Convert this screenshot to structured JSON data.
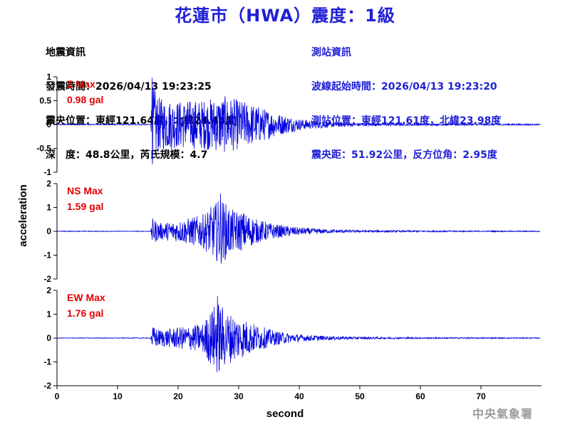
{
  "title": "花蓮市（HWA）震度：1級",
  "earthquake_info": {
    "heading": "地震資訊",
    "origin_time": "發震時間：2026/04/13 19:23:25",
    "epicenter": "震央位置：東經121.64度，北緯24.44度",
    "depth_magnitude": "深　度：48.8公里，芮氏規模：4.7"
  },
  "station_info": {
    "heading": "測站資訊",
    "wave_start": "波線起始時間：2026/04/13 19:23:20",
    "location": "測站位置：東經121.61度，北緯23.98度",
    "distance": "震央距：51.92公里，反方位角：2.95度"
  },
  "agency": "中央氣象署",
  "colors": {
    "title": "#1f1fd6",
    "trace": "#0000dd",
    "max_label": "#e00000",
    "station_info": "#1f1fd6",
    "agency": "#9a9a9a"
  },
  "chart_data": {
    "type": "line",
    "xlabel": "second",
    "ylabel": "acceleration",
    "xlim": [
      0,
      80
    ],
    "xticks": [
      0,
      10,
      20,
      30,
      40,
      50,
      60,
      70
    ],
    "panels": [
      {
        "name": "Z",
        "label": "Z Max",
        "max_text": "0.98 gal",
        "max": 0.98,
        "ylim": [
          -1,
          1
        ],
        "yticks": [
          -1,
          -0.5,
          0,
          0.5,
          1
        ],
        "envelope": {
          "x": [
            0,
            15.5,
            15.7,
            17,
            20,
            24,
            28,
            30,
            33,
            36,
            40,
            45,
            50,
            60,
            80
          ],
          "amp": [
            0.01,
            0.01,
            0.85,
            0.55,
            0.5,
            0.52,
            0.6,
            0.52,
            0.4,
            0.25,
            0.12,
            0.06,
            0.035,
            0.02,
            0.015
          ]
        }
      },
      {
        "name": "NS",
        "label": "NS Max",
        "max_text": "1.59 gal",
        "max": 1.59,
        "ylim": [
          -2,
          2
        ],
        "yticks": [
          -2,
          -1,
          0,
          1,
          2
        ],
        "envelope": {
          "x": [
            0,
            15.5,
            15.7,
            17,
            20,
            24,
            27,
            29,
            31,
            33,
            36,
            40,
            45,
            50,
            60,
            80
          ],
          "amp": [
            0.015,
            0.015,
            0.55,
            0.35,
            0.45,
            0.7,
            1.4,
            0.9,
            0.8,
            0.5,
            0.3,
            0.16,
            0.08,
            0.05,
            0.03,
            0.02
          ]
        }
      },
      {
        "name": "EW",
        "label": "EW Max",
        "max_text": "1.76 gal",
        "max": 1.76,
        "ylim": [
          -2,
          2
        ],
        "yticks": [
          -2,
          -1,
          0,
          1,
          2
        ],
        "envelope": {
          "x": [
            0,
            15.5,
            15.7,
            17,
            20,
            24,
            26.5,
            28,
            30,
            33,
            36,
            40,
            45,
            50,
            60,
            80
          ],
          "amp": [
            0.015,
            0.015,
            0.5,
            0.35,
            0.45,
            0.6,
            1.6,
            1.1,
            0.9,
            0.55,
            0.3,
            0.15,
            0.08,
            0.05,
            0.03,
            0.02
          ]
        }
      }
    ]
  }
}
